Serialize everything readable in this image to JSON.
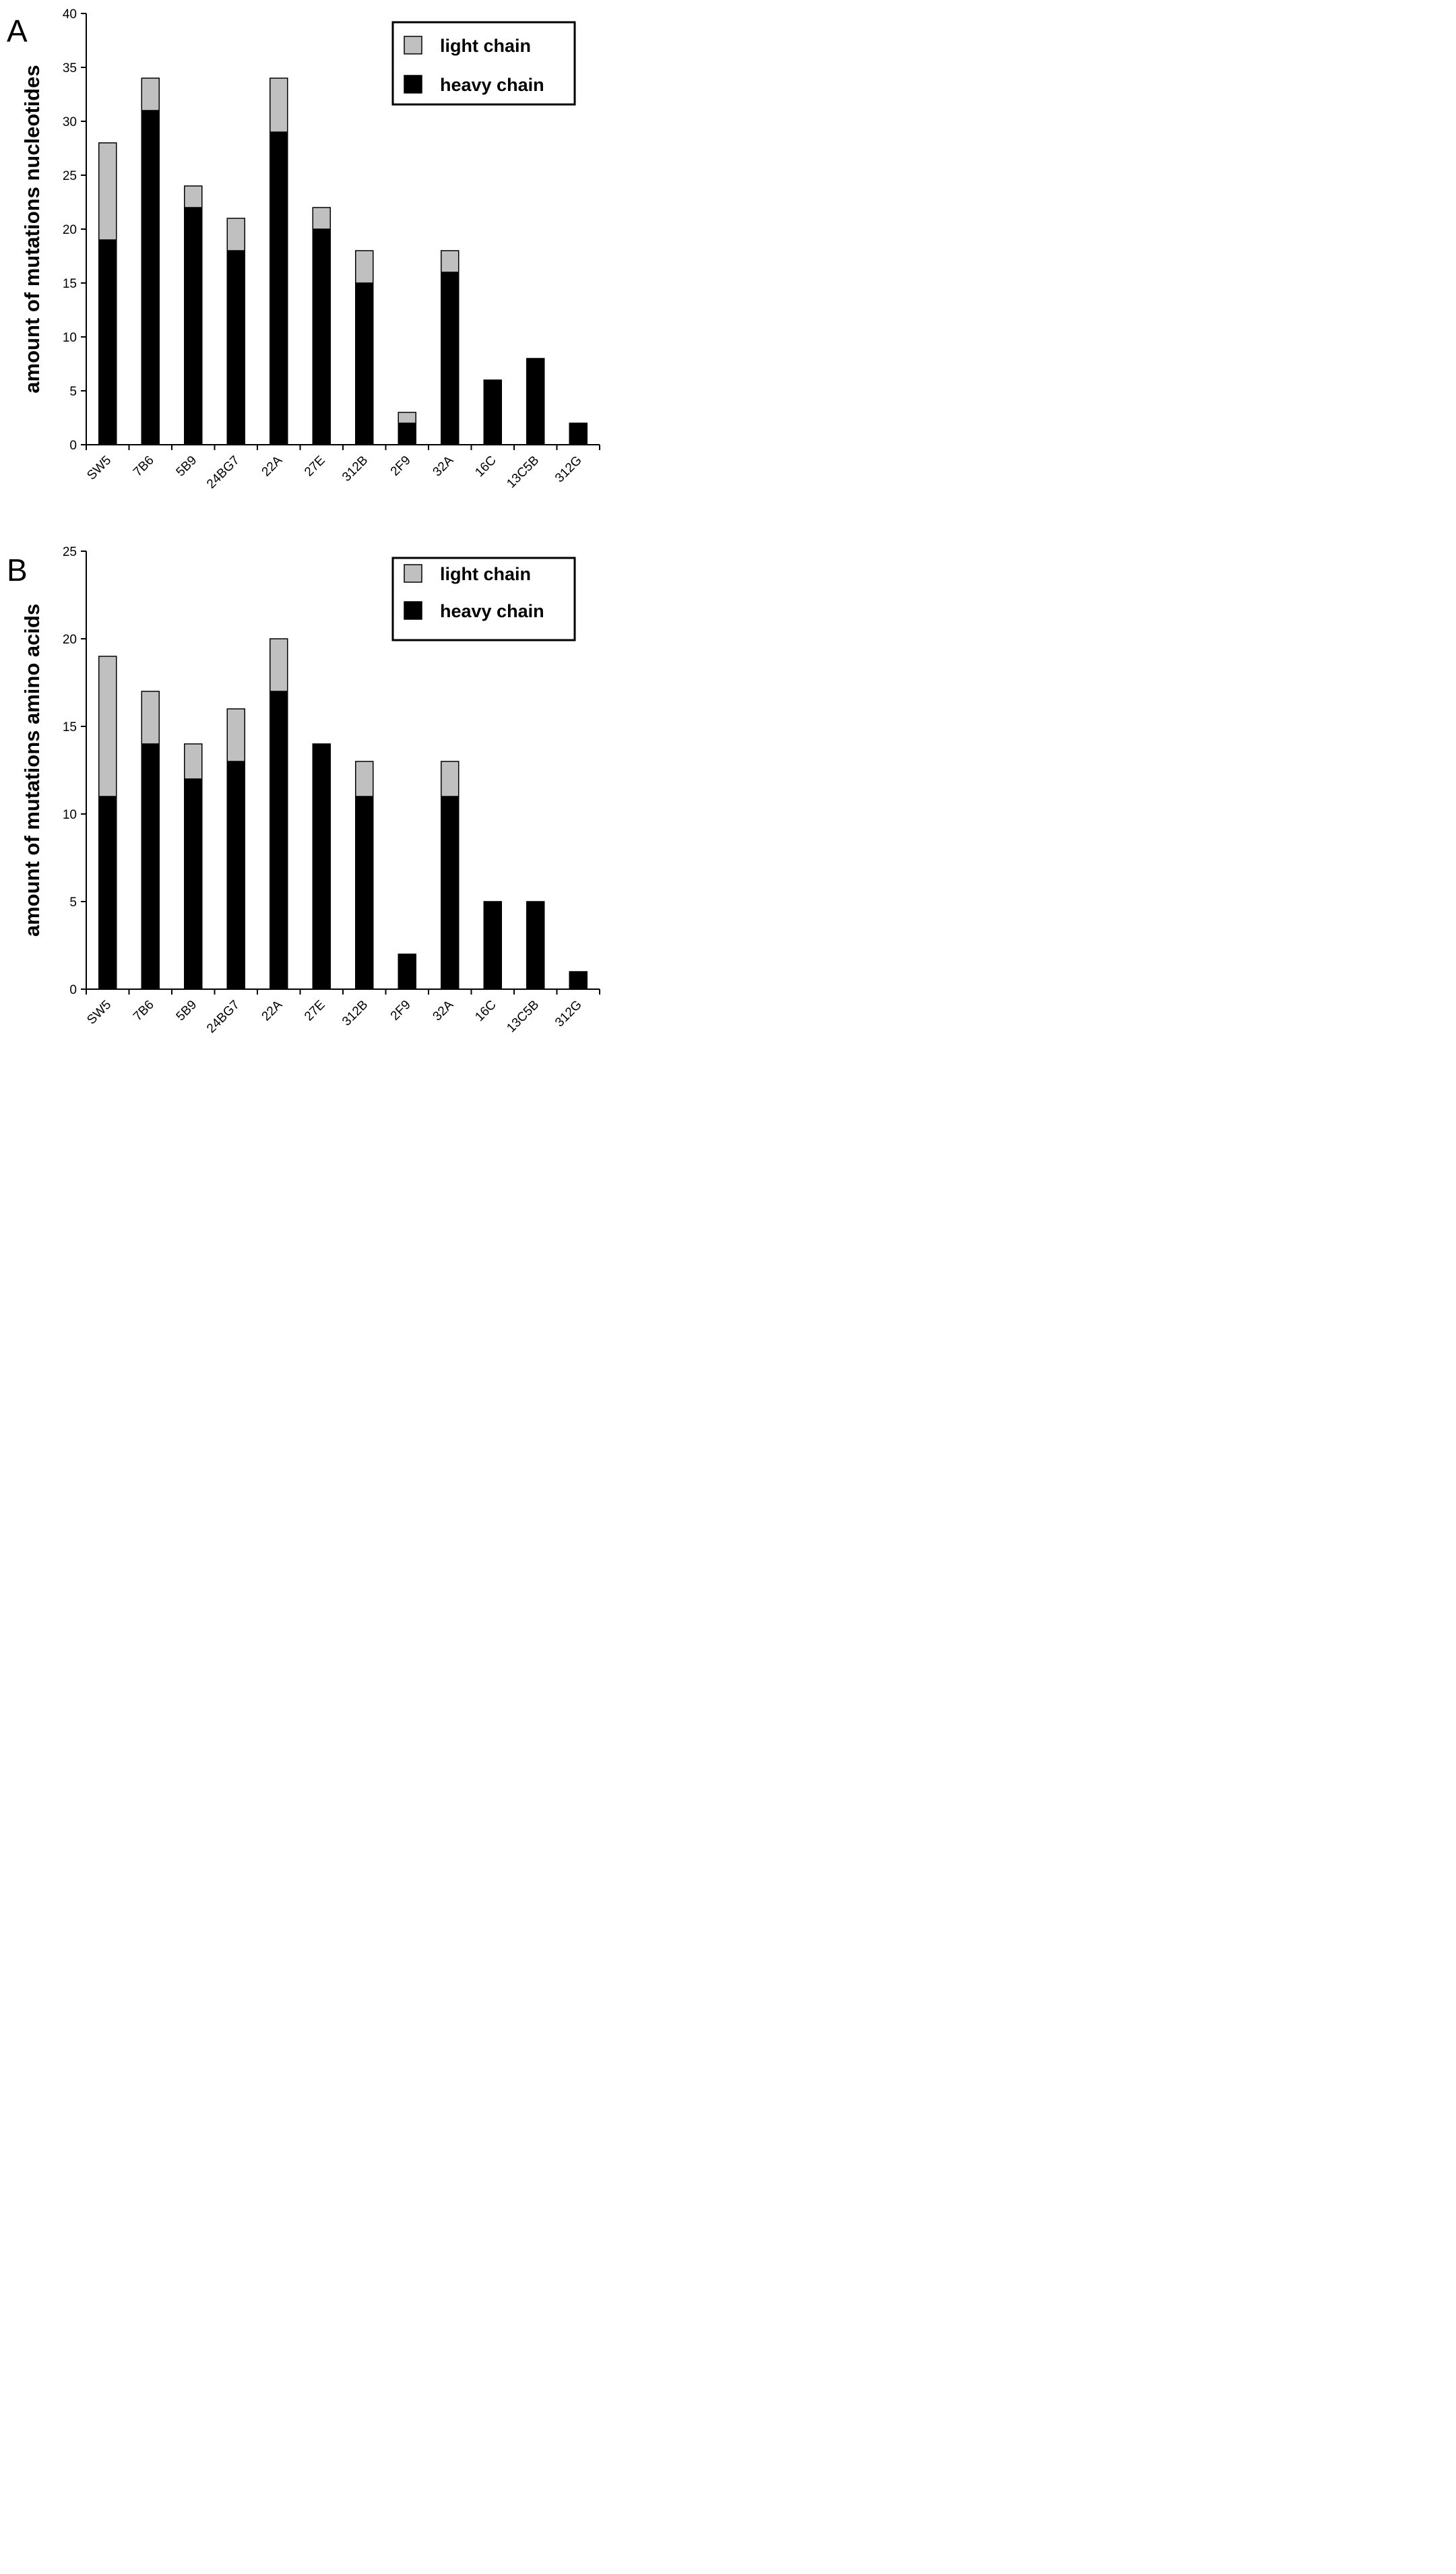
{
  "chart_data": [
    {
      "type": "bar",
      "stacked": true,
      "panel_label": "A",
      "title": "",
      "xlabel": "",
      "ylabel": "amount of mutations nucleotides",
      "ylim": [
        0,
        40
      ],
      "yticks": [
        0,
        5,
        10,
        15,
        20,
        25,
        30,
        35,
        40
      ],
      "categories": [
        "SW5",
        "7B6",
        "5B9",
        "24BG7",
        "22A",
        "27E",
        "312B",
        "2F9",
        "32A",
        "16C",
        "13C5B",
        "312G"
      ],
      "series": [
        {
          "name": "heavy chain",
          "color": "#000000",
          "values": [
            19,
            31,
            22,
            18,
            29,
            20,
            15,
            2,
            16,
            6,
            8,
            2
          ]
        },
        {
          "name": "light chain",
          "color": "#c0c0c0",
          "values": [
            9,
            3,
            2,
            3,
            5,
            2,
            3,
            1,
            2,
            0,
            0,
            0
          ]
        }
      ],
      "legend": {
        "position": "top-right",
        "entries": [
          "light chain",
          "heavy chain"
        ]
      }
    },
    {
      "type": "bar",
      "stacked": true,
      "panel_label": "B",
      "title": "",
      "xlabel": "",
      "ylabel": "amount of mutations amino acids",
      "ylim": [
        0,
        25
      ],
      "yticks": [
        0,
        5,
        10,
        15,
        20,
        25
      ],
      "categories": [
        "SW5",
        "7B6",
        "5B9",
        "24BG7",
        "22A",
        "27E",
        "312B",
        "2F9",
        "32A",
        "16C",
        "13C5B",
        "312G"
      ],
      "series": [
        {
          "name": "heavy chain",
          "color": "#000000",
          "values": [
            11,
            14,
            12,
            13,
            17,
            14,
            11,
            2,
            11,
            5,
            5,
            1
          ]
        },
        {
          "name": "light chain",
          "color": "#c0c0c0",
          "values": [
            8,
            3,
            2,
            3,
            3,
            0,
            2,
            0,
            2,
            0,
            0,
            0
          ]
        }
      ],
      "legend": {
        "position": "top-right",
        "entries": [
          "light chain",
          "heavy chain"
        ]
      }
    }
  ]
}
